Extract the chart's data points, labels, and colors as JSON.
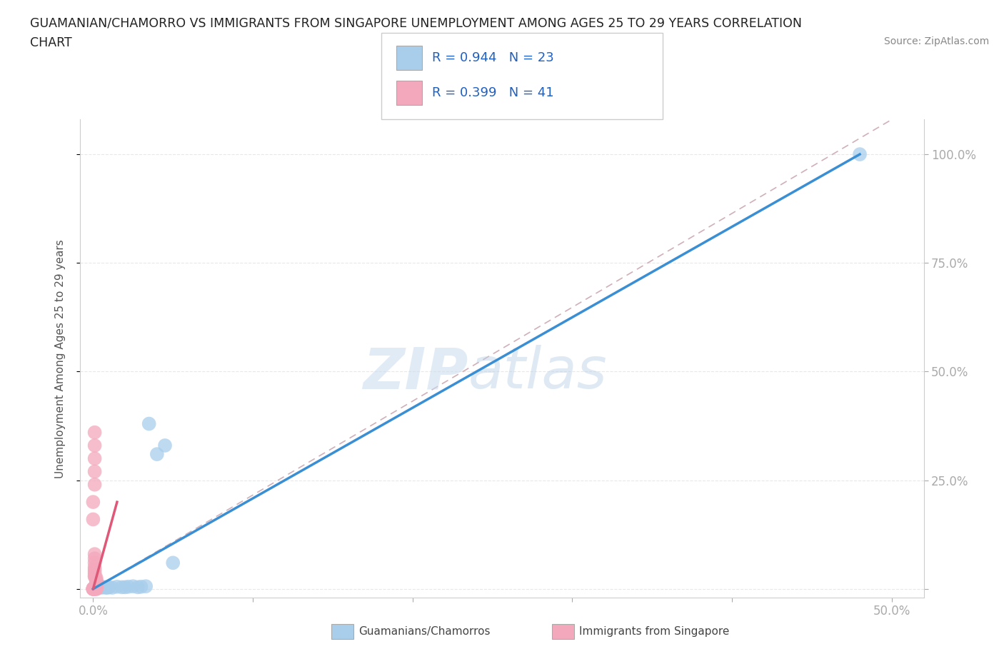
{
  "title_line1": "GUAMANIAN/CHAMORRO VS IMMIGRANTS FROM SINGAPORE UNEMPLOYMENT AMONG AGES 25 TO 29 YEARS CORRELATION",
  "title_line2": "CHART",
  "source_text": "Source: ZipAtlas.com",
  "ylabel": "Unemployment Among Ages 25 to 29 years",
  "watermark_zip": "ZIP",
  "watermark_atlas": "atlas",
  "legend_r1": "R = 0.944",
  "legend_n1": "N = 23",
  "legend_r2": "R = 0.399",
  "legend_n2": "N = 41",
  "blue_color": "#A8CEEC",
  "pink_color": "#F4A8BC",
  "blue_line_color": "#3A8FD4",
  "pink_line_color": "#E05878",
  "diagonal_color": "#D0B0B8",
  "blue_scatter": [
    [
      0.001,
      0.005
    ],
    [
      0.003,
      0.002
    ],
    [
      0.005,
      0.003
    ],
    [
      0.007,
      0.004
    ],
    [
      0.008,
      0.003
    ],
    [
      0.01,
      0.004
    ],
    [
      0.012,
      0.003
    ],
    [
      0.015,
      0.005
    ],
    [
      0.018,
      0.004
    ],
    [
      0.02,
      0.004
    ],
    [
      0.022,
      0.005
    ],
    [
      0.025,
      0.006
    ],
    [
      0.028,
      0.004
    ],
    [
      0.03,
      0.005
    ],
    [
      0.033,
      0.006
    ],
    [
      0.035,
      0.38
    ],
    [
      0.045,
      0.33
    ],
    [
      0.04,
      0.31
    ],
    [
      0.48,
      1.0
    ],
    [
      0.002,
      0.003
    ],
    [
      0.006,
      0.004
    ],
    [
      0.05,
      0.06
    ],
    [
      0.009,
      0.003
    ]
  ],
  "pink_scatter": [
    [
      0.0,
      0.0
    ],
    [
      0.001,
      0.001
    ],
    [
      0.001,
      0.002
    ],
    [
      0.002,
      0.001
    ],
    [
      0.002,
      0.003
    ],
    [
      0.002,
      0.005
    ],
    [
      0.002,
      0.008
    ],
    [
      0.002,
      0.01
    ],
    [
      0.002,
      0.012
    ],
    [
      0.002,
      0.015
    ],
    [
      0.002,
      0.018
    ],
    [
      0.002,
      0.02
    ],
    [
      0.002,
      0.025
    ],
    [
      0.001,
      0.028
    ],
    [
      0.001,
      0.03
    ],
    [
      0.001,
      0.035
    ],
    [
      0.001,
      0.04
    ],
    [
      0.001,
      0.045
    ],
    [
      0.001,
      0.05
    ],
    [
      0.001,
      0.06
    ],
    [
      0.001,
      0.07
    ],
    [
      0.001,
      0.08
    ],
    [
      0.0,
      0.16
    ],
    [
      0.0,
      0.2
    ],
    [
      0.001,
      0.24
    ],
    [
      0.001,
      0.27
    ],
    [
      0.001,
      0.3
    ],
    [
      0.001,
      0.33
    ],
    [
      0.001,
      0.36
    ],
    [
      0.0,
      0.001
    ],
    [
      0.001,
      0.003
    ],
    [
      0.002,
      0.0
    ],
    [
      0.0,
      0.0
    ],
    [
      0.001,
      0.0
    ],
    [
      0.002,
      0.002
    ],
    [
      0.0,
      0.0
    ],
    [
      0.001,
      0.001
    ],
    [
      0.002,
      0.0
    ],
    [
      0.0,
      0.0
    ],
    [
      0.001,
      0.0
    ],
    [
      0.0,
      0.0
    ]
  ],
  "xlim": [
    -0.008,
    0.52
  ],
  "ylim": [
    -0.02,
    1.08
  ],
  "xticks": [
    0.0,
    0.1,
    0.2,
    0.3,
    0.4,
    0.5
  ],
  "yticks": [
    0.0,
    0.25,
    0.5,
    0.75,
    1.0
  ],
  "xticklabels": [
    "0.0%",
    "",
    "",
    "",
    "",
    "50.0%"
  ],
  "right_yticklabels": [
    "",
    "25.0%",
    "50.0%",
    "75.0%",
    "100.0%"
  ],
  "bottom_legend_label1": "Guamanians/Chamorros",
  "bottom_legend_label2": "Immigrants from Singapore",
  "background_color": "#FFFFFF",
  "grid_color": "#E8E8E8",
  "tick_color": "#5B9BD5",
  "blue_line_endpoints": [
    [
      0.0,
      0.0
    ],
    [
      0.48,
      1.0
    ]
  ],
  "pink_line_endpoints": [
    [
      0.0,
      0.0
    ],
    [
      0.015,
      0.2
    ]
  ],
  "diag_line_endpoints": [
    [
      0.0,
      0.0
    ],
    [
      0.5,
      1.08
    ]
  ]
}
